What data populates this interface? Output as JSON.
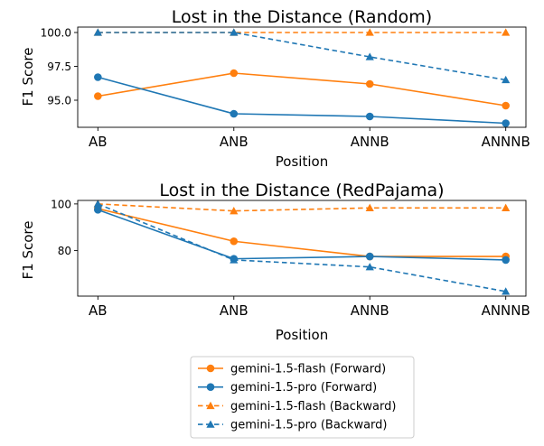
{
  "colors": {
    "forward_flash": "#ff7f0e",
    "forward_pro": "#1f77b4"
  },
  "legend": {
    "placement": "below",
    "entries": [
      {
        "label": "gemini-1.5-flash (Forward)",
        "color": "#ff7f0e",
        "style": "solid",
        "marker": "circle"
      },
      {
        "label": "gemini-1.5-pro (Forward)",
        "color": "#1f77b4",
        "style": "solid",
        "marker": "circle"
      },
      {
        "label": "gemini-1.5-flash (Backward)",
        "color": "#ff7f0e",
        "style": "dashed",
        "marker": "triangle"
      },
      {
        "label": "gemini-1.5-pro (Backward)",
        "color": "#1f77b4",
        "style": "dashed",
        "marker": "triangle"
      }
    ]
  },
  "chart_data": [
    {
      "type": "line",
      "title": "Lost in the Distance (Random)",
      "xlabel": "Position",
      "ylabel": "F1 Score",
      "categories": [
        "AB",
        "ANB",
        "ANNB",
        "ANNNB"
      ],
      "ylim": [
        93.0,
        100.4
      ],
      "yticks": [
        95.0,
        97.5,
        100.0
      ],
      "ytick_labels": [
        "95.0",
        "97.5",
        "100.0"
      ],
      "grid": false,
      "series": [
        {
          "name": "gemini-1.5-flash (Forward)",
          "values": [
            95.3,
            97.0,
            96.2,
            94.6
          ]
        },
        {
          "name": "gemini-1.5-pro (Forward)",
          "values": [
            96.7,
            94.0,
            93.8,
            93.3
          ]
        },
        {
          "name": "gemini-1.5-flash (Backward)",
          "values": [
            100.0,
            100.0,
            100.0,
            100.0
          ]
        },
        {
          "name": "gemini-1.5-pro (Backward)",
          "values": [
            100.0,
            100.0,
            98.2,
            96.5
          ]
        }
      ]
    },
    {
      "type": "line",
      "title": "Lost in the Distance (RedPajama)",
      "xlabel": "Position",
      "ylabel": "F1 Score",
      "categories": [
        "AB",
        "ANB",
        "ANNB",
        "ANNNB"
      ],
      "ylim": [
        60.5,
        101.5
      ],
      "yticks": [
        80,
        100
      ],
      "ytick_labels": [
        "80",
        "100"
      ],
      "grid": false,
      "series": [
        {
          "name": "gemini-1.5-flash (Forward)",
          "values": [
            98.0,
            84.0,
            77.5,
            77.5
          ]
        },
        {
          "name": "gemini-1.5-pro (Forward)",
          "values": [
            97.5,
            76.5,
            77.5,
            76.0
          ]
        },
        {
          "name": "gemini-1.5-flash (Backward)",
          "values": [
            100.0,
            97.0,
            98.3,
            98.3
          ]
        },
        {
          "name": "gemini-1.5-pro (Backward)",
          "values": [
            100.0,
            76.0,
            73.0,
            62.5
          ]
        }
      ]
    }
  ]
}
